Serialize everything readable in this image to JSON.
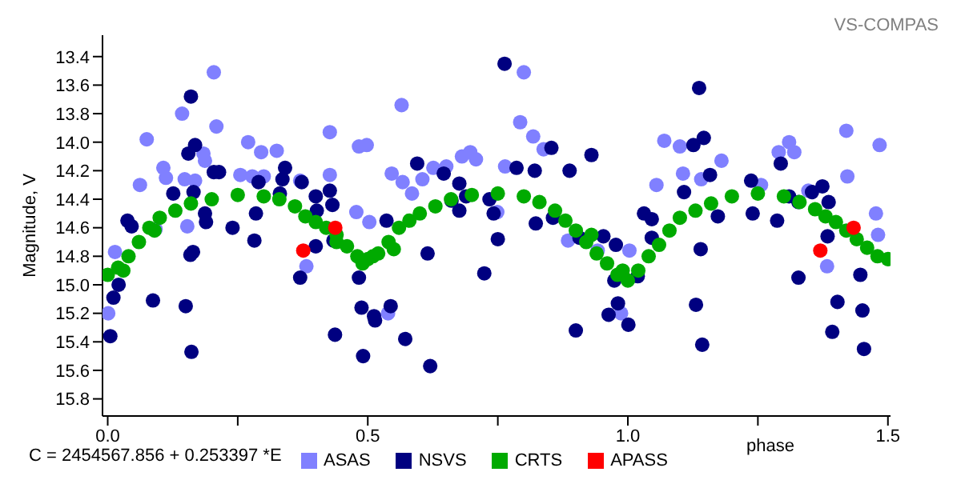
{
  "chart_data": {
    "type": "scatter",
    "title": "VS-COMPAS",
    "xlabel": "phase",
    "ylabel": "Magnitude, V",
    "annotations": [
      "C = 2454567.856 + 0.253397 *E"
    ],
    "xlim": [
      -0.01,
      1.505
    ],
    "xticks": [
      {
        "value": 0,
        "label": "0.0"
      },
      {
        "value": 0.25,
        "label": null
      },
      0.5,
      {
        "value": 0.75,
        "label": null
      },
      {
        "value": 1,
        "label": "1.0"
      },
      {
        "value": 1.25,
        "label": null
      },
      1.5
    ],
    "ylim": [
      15.92,
      13.25
    ],
    "yticks": [
      13.4,
      13.6,
      13.8,
      {
        "value": 14,
        "label": "14.0"
      },
      14.2,
      14.4,
      14.6,
      14.8,
      {
        "value": 15,
        "label": "15.0"
      },
      15.2,
      15.4,
      15.6,
      15.8
    ],
    "legend": "bottom",
    "marker": "circle",
    "grid": false,
    "series": [
      {
        "name": "ASAS",
        "color": "#8080ff",
        "x": [
          0.204,
          0.565,
          0.143,
          0.209,
          0.075,
          0.427,
          0.483,
          0.498,
          0.27,
          0.295,
          0.325,
          0.184,
          0.187,
          0.107,
          0.112,
          0.168,
          0.148,
          0.062,
          0.255,
          0.278,
          0.3,
          0.427,
          0.37,
          0.546,
          0.567,
          0.585,
          0.605,
          0.626,
          0.651,
          0.681,
          0.697,
          0.478,
          0.503,
          0.153,
          0.092,
          0.014,
          0.382,
          0.539,
          0.001,
          0.8,
          1.42,
          1.484,
          0.793,
          0.818,
          0.838,
          1.07,
          1.1,
          1.18,
          1.29,
          1.31,
          1.32,
          1.256,
          1.347,
          1.422,
          1.477,
          1.481,
          1.383,
          0.987,
          1.003,
          0.942,
          1.055,
          0.885,
          0.749,
          0.708,
          0.764,
          1.106,
          1.141
        ],
        "values": [
          13.51,
          13.74,
          13.8,
          13.89,
          13.98,
          13.93,
          14.03,
          14.02,
          14.0,
          14.07,
          14.06,
          14.08,
          14.13,
          14.18,
          14.25,
          14.27,
          14.26,
          14.3,
          14.23,
          14.24,
          14.24,
          14.23,
          14.27,
          14.22,
          14.28,
          14.36,
          14.26,
          14.18,
          14.17,
          14.1,
          14.07,
          14.49,
          14.56,
          14.59,
          14.61,
          14.77,
          14.87,
          15.2,
          15.2,
          13.51,
          13.92,
          14.02,
          13.86,
          13.96,
          14.05,
          13.99,
          14.03,
          14.13,
          14.07,
          14.0,
          14.07,
          14.3,
          14.34,
          14.24,
          14.5,
          14.65,
          14.87,
          15.2,
          14.76,
          14.76,
          14.3,
          14.69,
          14.49,
          14.12,
          14.17,
          14.22,
          14.26
        ]
      },
      {
        "name": "NSVS",
        "color": "#000080",
        "x": [
          0.16,
          0.155,
          0.168,
          0.204,
          0.214,
          0.126,
          0.165,
          0.038,
          0.046,
          0.021,
          0.011,
          0.005,
          0.161,
          0.159,
          0.164,
          0.187,
          0.189,
          0.285,
          0.341,
          0.336,
          0.373,
          0.4,
          0.427,
          0.432,
          0.402,
          0.434,
          0.4,
          0.37,
          0.437,
          0.491,
          0.488,
          0.483,
          0.514,
          0.512,
          0.536,
          0.544,
          0.572,
          0.62,
          0.615,
          0.595,
          0.646,
          0.661,
          0.676,
          0.689,
          0.676,
          0.29,
          0.282,
          0.24,
          0.087,
          0.15,
          0.331,
          0.763,
          1.137,
          1.126,
          1.146,
          0.853,
          0.821,
          0.786,
          0.93,
          0.888,
          0.734,
          0.742,
          0.823,
          0.856,
          0.907,
          0.953,
          0.977,
          0.974,
          0.981,
          0.963,
          1.001,
          0.9,
          1.019,
          1.031,
          1.046,
          1.046,
          1.14,
          1.143,
          1.131,
          1.108,
          1.158,
          1.237,
          1.24,
          1.294,
          1.287,
          1.31,
          1.328,
          1.354,
          1.374,
          1.386,
          1.384,
          1.403,
          1.393,
          1.447,
          1.454,
          1.451,
          1.328,
          0.724,
          0.75,
          1.173
        ],
        "values": [
          13.68,
          14.08,
          14.02,
          14.21,
          14.21,
          14.36,
          14.35,
          14.55,
          14.59,
          15.0,
          15.09,
          15.36,
          15.47,
          14.79,
          14.77,
          14.5,
          14.56,
          14.5,
          14.18,
          14.26,
          14.28,
          14.38,
          14.34,
          14.44,
          14.48,
          14.69,
          14.73,
          14.95,
          15.35,
          15.5,
          15.16,
          14.95,
          15.25,
          15.22,
          14.55,
          15.15,
          15.38,
          15.57,
          14.78,
          14.15,
          14.22,
          14.41,
          14.48,
          14.38,
          14.29,
          14.28,
          14.69,
          14.6,
          15.11,
          15.15,
          14.36,
          13.45,
          13.62,
          14.02,
          13.97,
          14.04,
          14.2,
          14.18,
          14.09,
          14.2,
          14.4,
          14.5,
          14.57,
          14.53,
          14.67,
          14.66,
          14.72,
          14.97,
          15.13,
          15.21,
          15.28,
          15.32,
          14.94,
          14.5,
          14.54,
          14.67,
          14.75,
          15.42,
          15.14,
          14.35,
          14.23,
          14.27,
          14.5,
          14.15,
          14.55,
          14.38,
          14.42,
          14.35,
          14.31,
          14.42,
          14.66,
          15.12,
          15.33,
          14.93,
          15.45,
          15.18,
          14.95,
          14.92,
          14.68,
          14.52
        ]
      },
      {
        "name": "CRTS",
        "color": "#00aa00",
        "x": [
          0,
          0.02,
          0.03,
          0.04,
          0.06,
          0.08,
          0.09,
          0.1,
          0.13,
          0.16,
          0.2,
          0.25,
          0.3,
          0.33,
          0.36,
          0.38,
          0.4,
          0.42,
          0.44,
          0.44,
          0.46,
          0.48,
          0.49,
          0.5,
          0.51,
          0.52,
          0.54,
          0.55,
          0.56,
          0.58,
          0.6,
          0.63,
          0.66,
          0.7,
          0.75,
          0.8,
          0.83,
          0.86,
          0.88,
          0.9,
          0.92,
          0.93,
          0.94,
          0.96,
          0.98,
          0.99,
          1.0,
          1.02,
          1.04,
          1.06,
          1.08,
          1.1,
          1.13,
          1.16,
          1.2,
          1.25,
          1.3,
          1.33,
          1.36,
          1.38,
          1.4,
          1.42,
          1.44,
          1.46,
          1.48,
          1.5
        ],
        "values": [
          14.93,
          14.88,
          14.9,
          14.8,
          14.7,
          14.6,
          14.62,
          14.53,
          14.48,
          14.43,
          14.4,
          14.37,
          14.38,
          14.4,
          14.45,
          14.52,
          14.56,
          14.6,
          14.65,
          14.7,
          14.73,
          14.8,
          14.85,
          14.82,
          14.8,
          14.78,
          14.7,
          14.75,
          14.6,
          14.55,
          14.5,
          14.45,
          14.4,
          14.37,
          14.36,
          14.38,
          14.42,
          14.48,
          14.55,
          14.62,
          14.7,
          14.65,
          14.78,
          14.85,
          14.93,
          14.9,
          14.97,
          14.9,
          14.8,
          14.72,
          14.62,
          14.53,
          14.48,
          14.43,
          14.38,
          14.36,
          14.38,
          14.42,
          14.47,
          14.52,
          14.56,
          14.62,
          14.68,
          14.74,
          14.8,
          14.82
        ]
      },
      {
        "name": "APASS",
        "color": "#ff0000",
        "x": [
          0.376,
          0.4375,
          1.37,
          1.434
        ],
        "values": [
          14.76,
          14.6,
          14.76,
          14.6
        ]
      }
    ]
  }
}
